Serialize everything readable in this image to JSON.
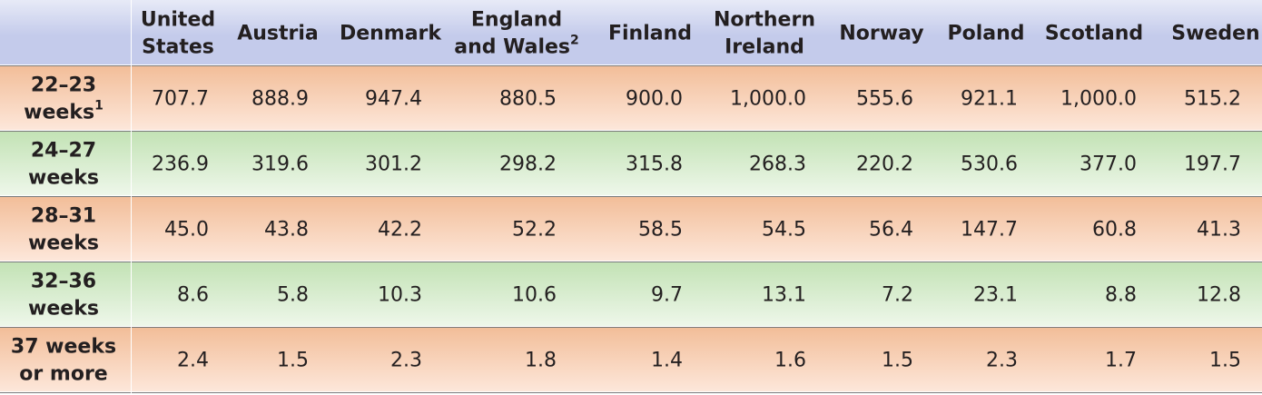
{
  "chart_data": {
    "type": "table",
    "columns": [
      {
        "lines": [
          "United",
          "States"
        ]
      },
      {
        "lines": [
          "Austria"
        ]
      },
      {
        "lines": [
          "Denmark"
        ]
      },
      {
        "lines": [
          "England",
          "and Wales"
        ],
        "superscript": "2"
      },
      {
        "lines": [
          "Finland"
        ]
      },
      {
        "lines": [
          "Northern",
          "Ireland"
        ]
      },
      {
        "lines": [
          "Norway"
        ]
      },
      {
        "lines": [
          "Poland"
        ]
      },
      {
        "lines": [
          "Scotland"
        ]
      },
      {
        "lines": [
          "Sweden"
        ]
      }
    ],
    "rows": [
      {
        "label_lines": [
          "22–23",
          "weeks"
        ],
        "superscript": "1",
        "values": [
          "707.7",
          "888.9",
          "947.4",
          "880.5",
          "900.0",
          "1,000.0",
          "555.6",
          "921.1",
          "1,000.0",
          "515.2"
        ]
      },
      {
        "label_lines": [
          "24–27",
          "weeks"
        ],
        "values": [
          "236.9",
          "319.6",
          "301.2",
          "298.2",
          "315.8",
          "268.3",
          "220.2",
          "530.6",
          "377.0",
          "197.7"
        ]
      },
      {
        "label_lines": [
          "28–31",
          "weeks"
        ],
        "values": [
          "45.0",
          "43.8",
          "42.2",
          "52.2",
          "58.5",
          "54.5",
          "56.4",
          "147.7",
          "60.8",
          "41.3"
        ]
      },
      {
        "label_lines": [
          "32–36",
          "weeks"
        ],
        "values": [
          "8.6",
          "5.8",
          "10.3",
          "10.6",
          "9.7",
          "13.1",
          "7.2",
          "23.1",
          "8.8",
          "12.8"
        ]
      },
      {
        "label_lines": [
          "37 weeks",
          "or more"
        ],
        "values": [
          "2.4",
          "1.5",
          "2.3",
          "1.8",
          "1.4",
          "1.6",
          "1.5",
          "2.3",
          "1.7",
          "1.5"
        ]
      }
    ]
  },
  "colors": {
    "header_top": "#e7eaf7",
    "header_bottom": "#c4cbeb",
    "orange_top": "#fde7da",
    "orange_mid": "#f2bd98",
    "green_top": "#eef7ea",
    "green_mid": "#c2e2b4",
    "text": "#231f20",
    "divider": "#7a7a7a"
  }
}
